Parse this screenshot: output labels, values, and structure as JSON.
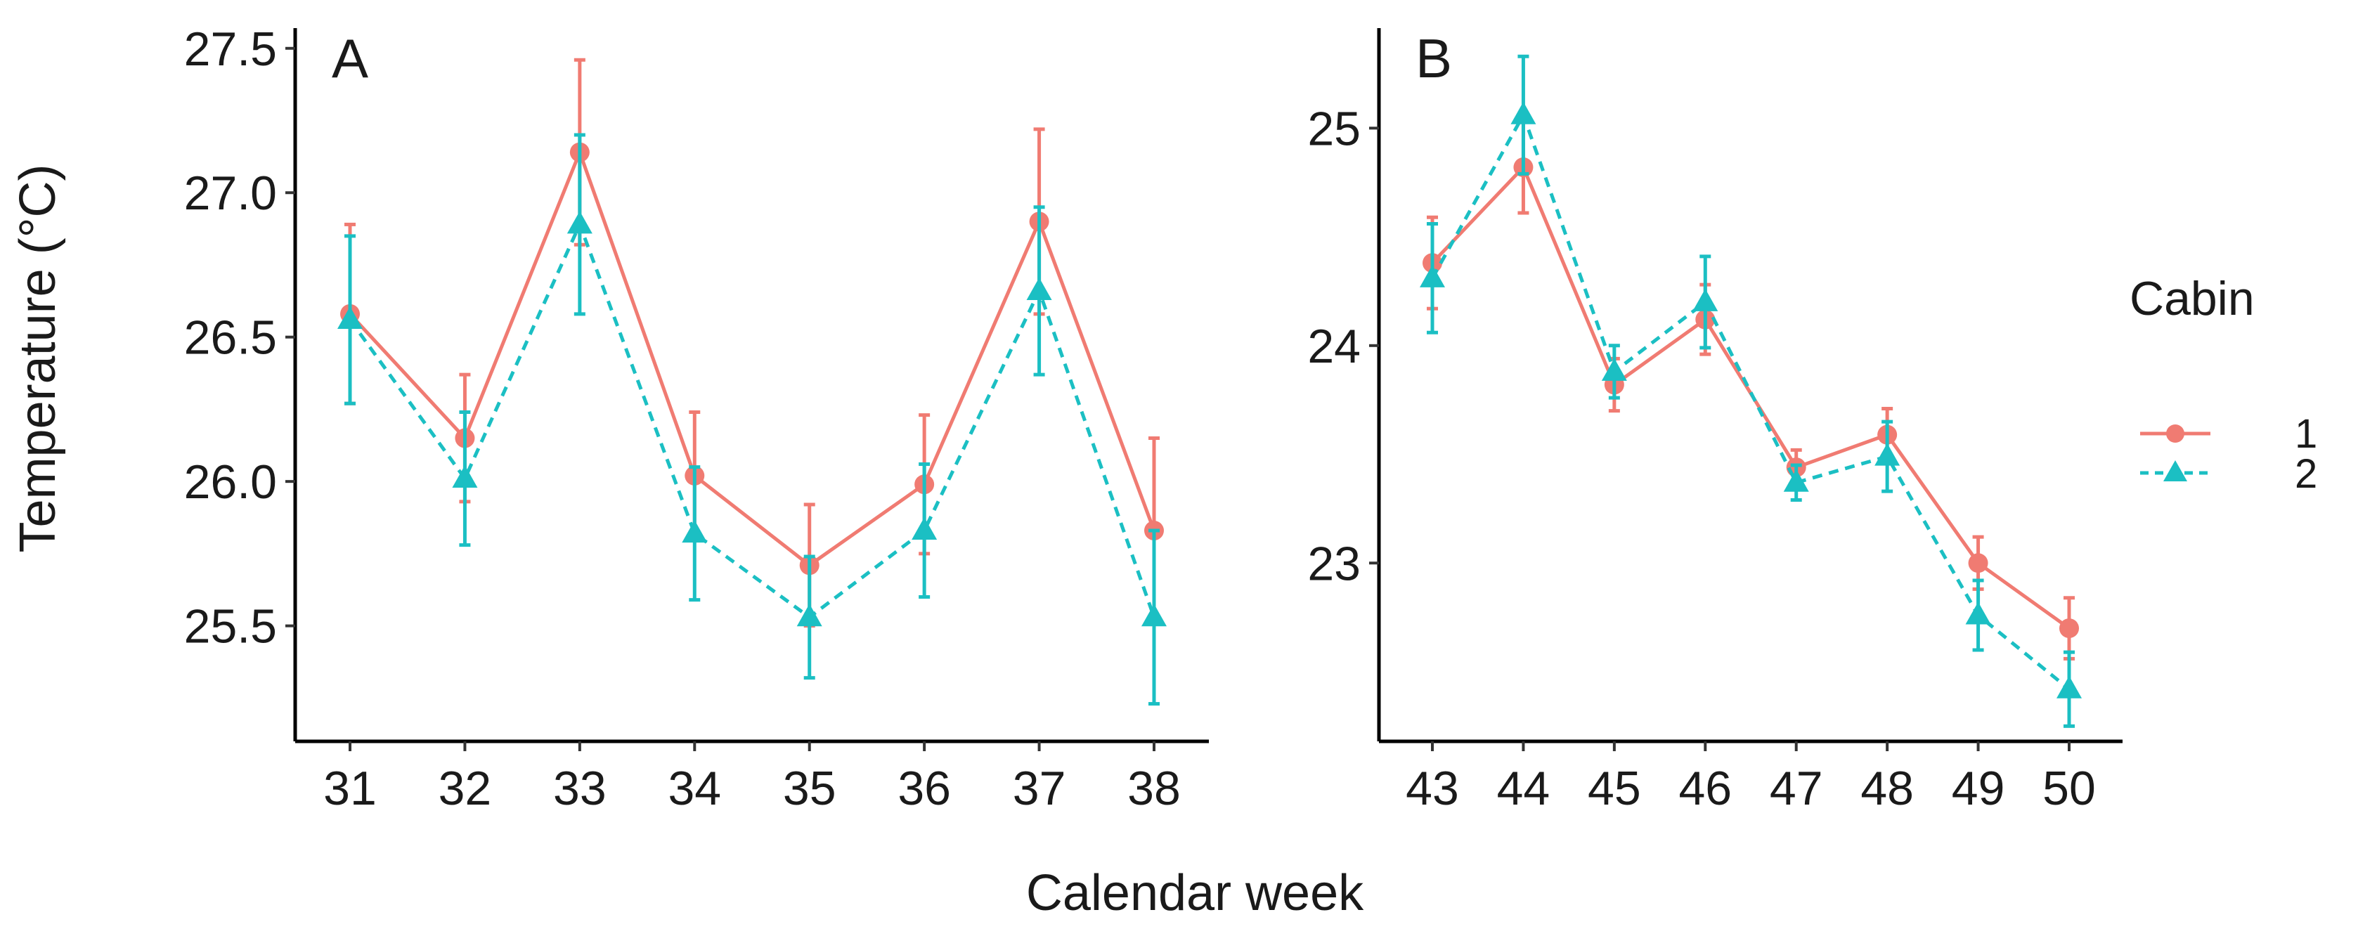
{
  "figure": {
    "ylabel": "Temperature (°C)",
    "xlabel": "Calendar week"
  },
  "legend": {
    "title": "Cabin",
    "entries": [
      {
        "label": "1",
        "color": "#F07B72",
        "marker": "circle",
        "linestyle": "solid"
      },
      {
        "label": "2",
        "color": "#1BBFC3",
        "marker": "triangle",
        "linestyle": "dashed"
      }
    ]
  },
  "chart_data": [
    {
      "type": "line",
      "panel_label": "A",
      "x": [
        31,
        32,
        33,
        34,
        35,
        36,
        37,
        38
      ],
      "x_tick_labels": [
        "31",
        "32",
        "33",
        "34",
        "35",
        "36",
        "37",
        "38"
      ],
      "y_ticks": [
        25.5,
        26.0,
        26.5,
        27.0,
        27.5
      ],
      "y_tick_labels": [
        "25.5",
        "26.0",
        "26.5",
        "27.0",
        "27.5"
      ],
      "ylim": [
        25.1,
        27.57
      ],
      "grid": false,
      "series": [
        {
          "name": "1",
          "values": [
            26.58,
            26.15,
            27.14,
            26.02,
            25.71,
            25.99,
            26.9,
            25.83
          ],
          "err_low": [
            26.27,
            25.93,
            26.82,
            25.8,
            25.5,
            25.75,
            26.58,
            25.51
          ],
          "err_high": [
            26.89,
            26.37,
            27.46,
            26.24,
            25.92,
            26.23,
            27.22,
            26.15
          ]
        },
        {
          "name": "2",
          "values": [
            26.56,
            26.01,
            26.89,
            25.82,
            25.53,
            25.83,
            26.66,
            25.53
          ],
          "err_low": [
            26.27,
            25.78,
            26.58,
            25.59,
            25.32,
            25.6,
            26.37,
            25.23
          ],
          "err_high": [
            26.85,
            26.24,
            27.2,
            26.05,
            25.74,
            26.06,
            26.95,
            25.83
          ]
        }
      ]
    },
    {
      "type": "line",
      "panel_label": "B",
      "x": [
        43,
        44,
        45,
        46,
        47,
        48,
        49,
        50
      ],
      "x_tick_labels": [
        "43",
        "44",
        "45",
        "46",
        "47",
        "48",
        "49",
        "50"
      ],
      "y_ticks": [
        23,
        24,
        25
      ],
      "y_tick_labels": [
        "23",
        "24",
        "25"
      ],
      "ylim": [
        22.18,
        25.46
      ],
      "grid": false,
      "series": [
        {
          "name": "1",
          "values": [
            24.38,
            24.82,
            23.82,
            24.12,
            23.44,
            23.59,
            23.0,
            22.7
          ],
          "err_low": [
            24.17,
            24.61,
            23.7,
            23.96,
            23.36,
            23.47,
            22.88,
            22.56
          ],
          "err_high": [
            24.59,
            25.03,
            23.94,
            24.28,
            23.52,
            23.71,
            23.12,
            22.84
          ]
        },
        {
          "name": "2",
          "values": [
            24.31,
            25.06,
            23.88,
            24.2,
            23.37,
            23.49,
            22.76,
            22.42
          ],
          "err_low": [
            24.06,
            24.79,
            23.76,
            23.99,
            23.29,
            23.33,
            22.6,
            22.25
          ],
          "err_high": [
            24.56,
            25.33,
            24.0,
            24.41,
            23.45,
            23.65,
            22.92,
            22.59
          ]
        }
      ]
    }
  ]
}
